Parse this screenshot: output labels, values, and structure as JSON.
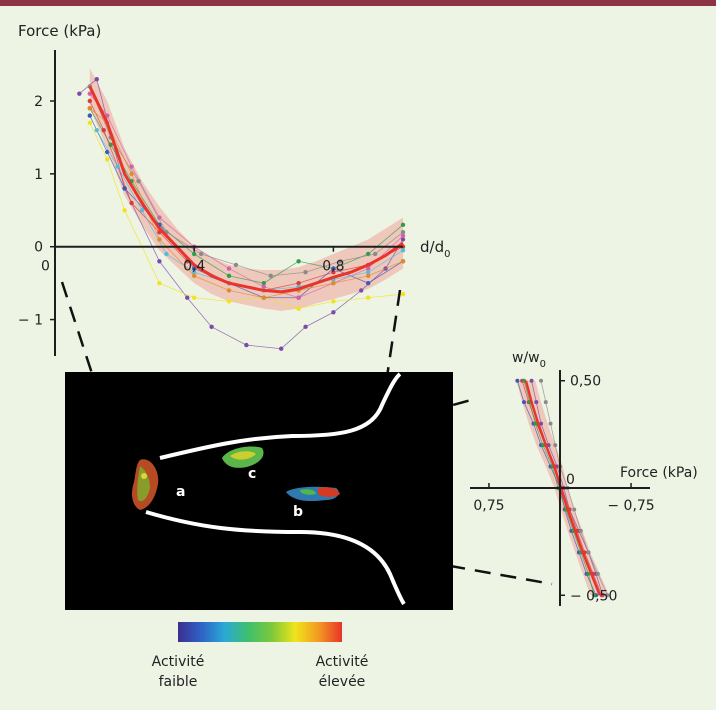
{
  "colors": {
    "accent_bar": "#8e3346",
    "mean_line": "#e8342b",
    "band": "#f1a49a",
    "axis": "#1e1e1e",
    "background": "#eef4e4"
  },
  "chart_data": [
    {
      "id": "force-vs-distance",
      "type": "line",
      "title": "",
      "ylabel": "Force (kPa)",
      "xlabel": "d/d0",
      "xlabel_main": "d/d",
      "xlabel_sub": "0",
      "xlim": [
        0,
        1.0
      ],
      "ylim": [
        -1.5,
        2.7
      ],
      "x_ticks": [
        0,
        0.4,
        0.8
      ],
      "x_tick_labels": [
        "0",
        "0,4",
        "0,8"
      ],
      "y_ticks": [
        -1,
        0,
        1,
        2
      ],
      "y_tick_labels": [
        "− 1",
        "0",
        "1",
        "2"
      ],
      "origin_label": "0",
      "grid": false,
      "mean": {
        "x": [
          0.1,
          0.15,
          0.2,
          0.25,
          0.3,
          0.35,
          0.4,
          0.45,
          0.5,
          0.55,
          0.6,
          0.65,
          0.7,
          0.75,
          0.8,
          0.85,
          0.9,
          0.95,
          1.0
        ],
        "y": [
          2.2,
          1.7,
          1.0,
          0.6,
          0.25,
          0.0,
          -0.25,
          -0.4,
          -0.5,
          -0.55,
          -0.6,
          -0.62,
          -0.58,
          -0.5,
          -0.42,
          -0.35,
          -0.25,
          -0.12,
          0.05
        ],
        "band_upper": [
          2.45,
          2.0,
          1.35,
          0.9,
          0.55,
          0.25,
          0.0,
          -0.15,
          -0.25,
          -0.3,
          -0.32,
          -0.32,
          -0.28,
          -0.2,
          -0.1,
          0.0,
          0.1,
          0.25,
          0.4
        ],
        "band_lower": [
          1.9,
          1.35,
          0.7,
          0.3,
          -0.05,
          -0.28,
          -0.5,
          -0.65,
          -0.75,
          -0.8,
          -0.85,
          -0.88,
          -0.85,
          -0.78,
          -0.72,
          -0.65,
          -0.58,
          -0.45,
          -0.3
        ]
      },
      "traces": [
        {
          "color": "#7b4ba8",
          "x": [
            0.07,
            0.12,
            0.2,
            0.3,
            0.38,
            0.45,
            0.55,
            0.65,
            0.72,
            0.8,
            0.88,
            0.95,
            1.0
          ],
          "y": [
            2.1,
            2.3,
            0.8,
            -0.2,
            -0.7,
            -1.1,
            -1.35,
            -1.4,
            -1.1,
            -0.9,
            -0.6,
            -0.3,
            0.1
          ]
        },
        {
          "color": "#2e9e4a",
          "x": [
            0.1,
            0.16,
            0.22,
            0.3,
            0.4,
            0.5,
            0.6,
            0.7,
            0.8,
            0.9,
            1.0
          ],
          "y": [
            1.9,
            1.4,
            0.9,
            0.3,
            -0.1,
            -0.4,
            -0.5,
            -0.2,
            -0.3,
            -0.1,
            0.3
          ]
        },
        {
          "color": "#f2e21c",
          "x": [
            0.1,
            0.15,
            0.2,
            0.3,
            0.4,
            0.5,
            0.6,
            0.7,
            0.8,
            0.9,
            1.0
          ],
          "y": [
            1.7,
            1.2,
            0.5,
            -0.5,
            -0.7,
            -0.75,
            -0.7,
            -0.85,
            -0.75,
            -0.7,
            -0.65
          ]
        },
        {
          "color": "#d93a3a",
          "x": [
            0.1,
            0.14,
            0.22,
            0.3,
            0.38,
            0.5,
            0.6,
            0.7,
            0.8,
            0.9,
            1.0
          ],
          "y": [
            2.0,
            1.6,
            0.6,
            0.2,
            -0.2,
            -0.5,
            -0.6,
            -0.5,
            -0.35,
            -0.25,
            0.0
          ]
        },
        {
          "color": "#3c57b4",
          "x": [
            0.1,
            0.15,
            0.2,
            0.3,
            0.4,
            0.5,
            0.6,
            0.7,
            0.8,
            0.9,
            1.0
          ],
          "y": [
            1.8,
            1.3,
            0.8,
            0.3,
            -0.3,
            -0.5,
            -0.7,
            -0.7,
            -0.3,
            -0.5,
            -0.2
          ]
        },
        {
          "color": "#d65fa8",
          "x": [
            0.1,
            0.15,
            0.22,
            0.3,
            0.4,
            0.5,
            0.6,
            0.7,
            0.8,
            0.9,
            1.0
          ],
          "y": [
            2.1,
            1.8,
            1.1,
            0.4,
            0.0,
            -0.3,
            -0.55,
            -0.7,
            -0.5,
            -0.3,
            0.15
          ]
        },
        {
          "color": "#55bcd8",
          "x": [
            0.12,
            0.18,
            0.25,
            0.32,
            0.4,
            0.5,
            0.6,
            0.7,
            0.8,
            0.9,
            1.0
          ],
          "y": [
            1.6,
            1.1,
            0.5,
            -0.1,
            -0.35,
            -0.5,
            -0.6,
            -0.55,
            -0.45,
            -0.35,
            -0.05
          ]
        },
        {
          "color": "#8a8a8a",
          "x": [
            0.1,
            0.16,
            0.24,
            0.32,
            0.42,
            0.52,
            0.62,
            0.72,
            0.82,
            0.92,
            1.0
          ],
          "y": [
            2.2,
            1.5,
            0.9,
            0.2,
            -0.1,
            -0.25,
            -0.4,
            -0.35,
            -0.2,
            -0.1,
            0.2
          ]
        },
        {
          "color": "#e08a2a",
          "x": [
            0.1,
            0.15,
            0.22,
            0.3,
            0.4,
            0.5,
            0.6,
            0.7,
            0.8,
            0.9,
            1.0
          ],
          "y": [
            1.9,
            1.7,
            1.0,
            0.1,
            -0.4,
            -0.6,
            -0.7,
            -0.6,
            -0.5,
            -0.4,
            -0.2
          ]
        }
      ]
    },
    {
      "id": "width-vs-force",
      "type": "line",
      "title": "",
      "xlabel": "Force (kPa)",
      "ylabel": "w/w0",
      "ylabel_main": "w/w",
      "ylabel_sub": "0",
      "xlim": [
        0.95,
        -0.95
      ],
      "ylim": [
        -0.55,
        0.55
      ],
      "x_ticks": [
        0.75,
        -0.75
      ],
      "x_tick_labels": [
        "0,75",
        "− 0,75"
      ],
      "y_ticks": [
        0.5,
        -0.5
      ],
      "y_tick_labels": [
        "0,50",
        "− 0,50"
      ],
      "origin_label": "0",
      "grid": false,
      "mean": {
        "y": [
          0.5,
          0.4,
          0.3,
          0.2,
          0.1,
          0.0,
          -0.1,
          -0.2,
          -0.3,
          -0.4,
          -0.5
        ],
        "x": [
          0.36,
          0.3,
          0.23,
          0.15,
          0.06,
          -0.01,
          -0.08,
          -0.16,
          -0.24,
          -0.33,
          -0.42
        ],
        "band_upper": [
          0.46,
          0.4,
          0.33,
          0.25,
          0.15,
          0.06,
          -0.01,
          -0.08,
          -0.16,
          -0.24,
          -0.32
        ],
        "band_lower": [
          0.26,
          0.2,
          0.13,
          0.05,
          -0.03,
          -0.08,
          -0.15,
          -0.24,
          -0.32,
          -0.42,
          -0.52
        ]
      },
      "traces": [
        {
          "color": "#3c57b4",
          "y": [
            0.5,
            0.4,
            0.3,
            0.2,
            0.1,
            0.0,
            -0.1,
            -0.2,
            -0.3,
            -0.4,
            -0.5
          ],
          "x": [
            0.45,
            0.38,
            0.28,
            0.2,
            0.1,
            0.0,
            -0.05,
            -0.12,
            -0.2,
            -0.28,
            -0.38
          ]
        },
        {
          "color": "#7b4ba8",
          "y": [
            0.5,
            0.4,
            0.3,
            0.2,
            0.1,
            0.0,
            -0.1,
            -0.2,
            -0.3,
            -0.4,
            -0.5
          ],
          "x": [
            0.3,
            0.25,
            0.2,
            0.12,
            0.03,
            -0.04,
            -0.1,
            -0.2,
            -0.3,
            -0.38,
            -0.45
          ]
        },
        {
          "color": "#d93a3a",
          "y": [
            0.5,
            0.4,
            0.3,
            0.2,
            0.1,
            0.0,
            -0.1,
            -0.2,
            -0.3,
            -0.4,
            -0.5
          ],
          "x": [
            0.4,
            0.33,
            0.25,
            0.15,
            0.05,
            -0.02,
            -0.1,
            -0.18,
            -0.26,
            -0.35,
            -0.44
          ]
        },
        {
          "color": "#8a8a8a",
          "y": [
            0.5,
            0.4,
            0.3,
            0.2,
            0.1,
            0.0,
            -0.1,
            -0.2,
            -0.3,
            -0.4,
            -0.5
          ],
          "x": [
            0.2,
            0.15,
            0.1,
            0.05,
            0.0,
            -0.08,
            -0.15,
            -0.22,
            -0.3,
            -0.4,
            -0.5
          ]
        },
        {
          "color": "#2e9e4a",
          "y": [
            0.5,
            0.4,
            0.3,
            0.2,
            0.1,
            0.0,
            -0.1,
            -0.2,
            -0.3,
            -0.4,
            -0.5
          ],
          "x": [
            0.38,
            0.32,
            0.26,
            0.18,
            0.08,
            0.02,
            -0.06,
            -0.14,
            -0.22,
            -0.3,
            -0.36
          ]
        }
      ]
    }
  ],
  "micrograph": {
    "cell_labels": [
      "a",
      "b",
      "c"
    ]
  },
  "colorbar": {
    "stops": [
      "#3b2f8f",
      "#2f63c7",
      "#2aa9d6",
      "#3fbf6c",
      "#7cc83b",
      "#f0e41c",
      "#f29a22",
      "#e8332a"
    ],
    "low_label_line1": "Activité",
    "low_label_line2": "faible",
    "high_label_line1": "Activité",
    "high_label_line2": "élevée"
  }
}
